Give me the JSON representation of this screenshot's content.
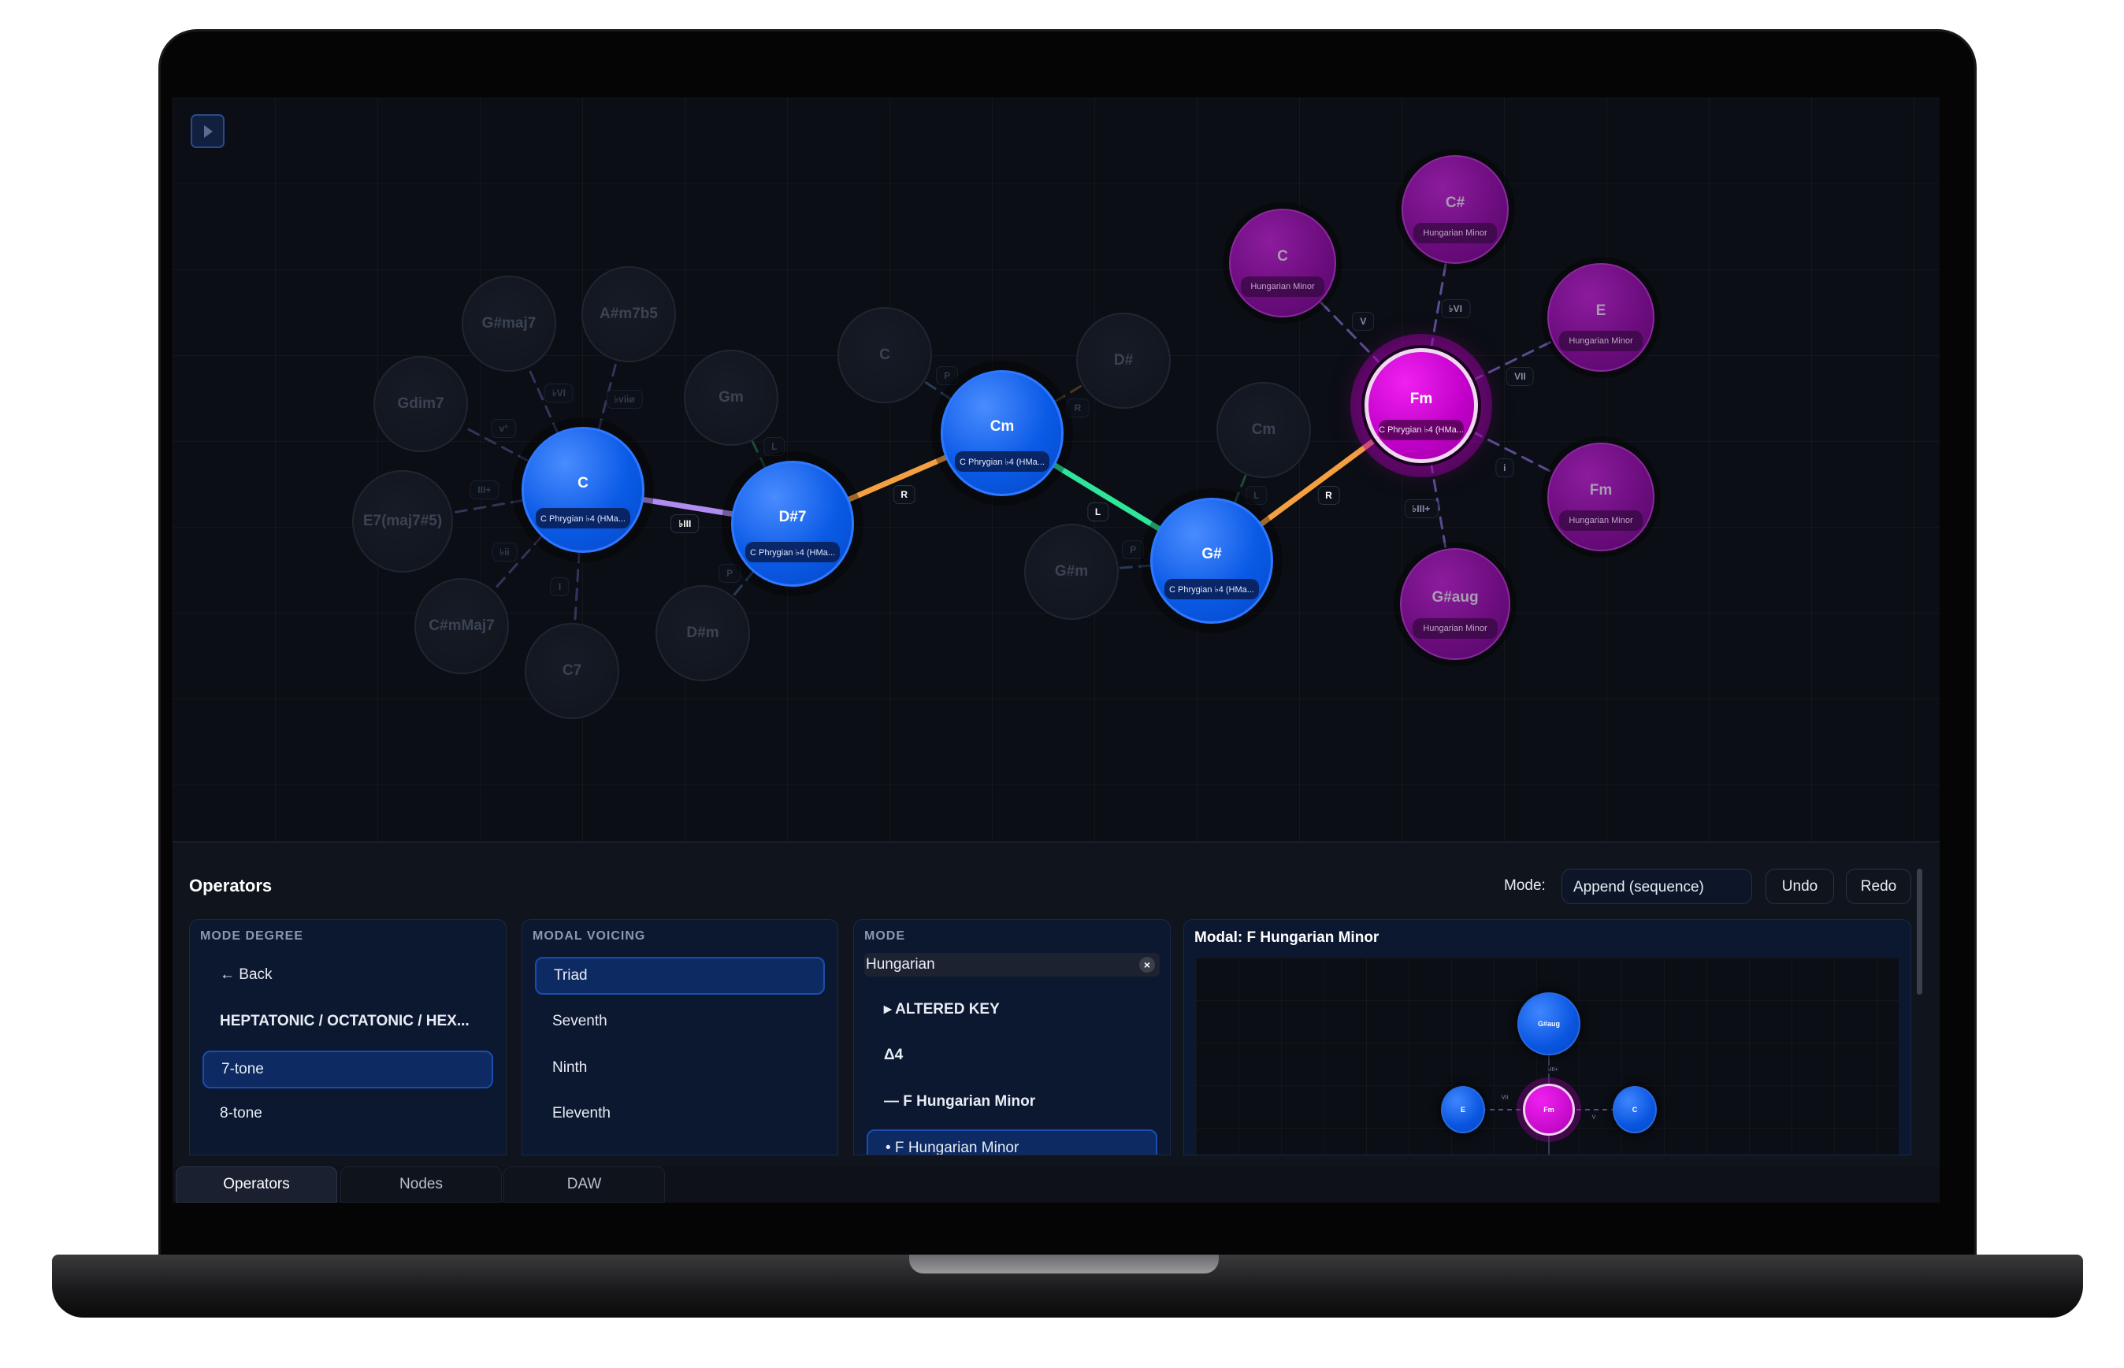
{
  "graph": {
    "nodes": [
      {
        "id": "c",
        "label": "C",
        "sub": "C Phrygian ♭4 (HMa...",
        "kind": "active"
      },
      {
        "id": "ds7",
        "label": "D#7",
        "sub": "C Phrygian ♭4 (HMa...",
        "kind": "active"
      },
      {
        "id": "cm",
        "label": "Cm",
        "sub": "C Phrygian ♭4 (HMa...",
        "kind": "active"
      },
      {
        "id": "gs",
        "label": "G#",
        "sub": "C Phrygian ♭4 (HMa...",
        "kind": "active"
      },
      {
        "id": "fm",
        "label": "Fm",
        "sub": "C Phrygian ♭4 (HMa...",
        "kind": "current"
      },
      {
        "id": "g_gsmaj7",
        "label": "G#maj7",
        "kind": "ghost"
      },
      {
        "id": "g_asm7b5",
        "label": "A#m7b5",
        "kind": "ghost"
      },
      {
        "id": "g_gdim7",
        "label": "Gdim7",
        "kind": "ghost"
      },
      {
        "id": "g_e7",
        "label": "E7(maj7#5)",
        "kind": "ghost"
      },
      {
        "id": "g_csmmaj7",
        "label": "C#mMaj7",
        "kind": "ghost"
      },
      {
        "id": "g_c7",
        "label": "C7",
        "kind": "ghost"
      },
      {
        "id": "g_gm",
        "label": "Gm",
        "kind": "ghost"
      },
      {
        "id": "g_dsm",
        "label": "D#m",
        "kind": "ghost"
      },
      {
        "id": "g_c",
        "label": "C",
        "kind": "ghost"
      },
      {
        "id": "g_ds",
        "label": "D#",
        "kind": "ghost"
      },
      {
        "id": "g_cm",
        "label": "Cm",
        "kind": "ghost"
      },
      {
        "id": "g_gsm",
        "label": "G#m",
        "kind": "ghost"
      },
      {
        "id": "m_c",
        "label": "C",
        "sub": "Hungarian Minor",
        "kind": "modal"
      },
      {
        "id": "m_cs",
        "label": "C#",
        "sub": "Hungarian Minor",
        "kind": "modal"
      },
      {
        "id": "m_e",
        "label": "E",
        "sub": "Hungarian Minor",
        "kind": "modal"
      },
      {
        "id": "m_fm",
        "label": "Fm",
        "sub": "Hungarian Minor",
        "kind": "modal"
      },
      {
        "id": "m_gsaug",
        "label": "G#aug",
        "sub": "Hungarian Minor",
        "kind": "modal"
      }
    ],
    "edges": [
      {
        "from": "c",
        "to": "ds7",
        "label": "♭III",
        "style": "sequence",
        "color": "#b08cf0"
      },
      {
        "from": "ds7",
        "to": "cm",
        "label": "R",
        "style": "sequence",
        "color": "#f5a040"
      },
      {
        "from": "cm",
        "to": "gs",
        "label": "L",
        "style": "sequence",
        "color": "#2ee59a"
      },
      {
        "from": "gs",
        "to": "fm",
        "label": "R",
        "style": "sequence",
        "color": "#f5a040"
      },
      {
        "from": "c",
        "to": "g_gsmaj7",
        "label": "♭VI",
        "style": "ghost",
        "color": "#34345a"
      },
      {
        "from": "c",
        "to": "g_asm7b5",
        "label": "♭viiø",
        "style": "ghost",
        "color": "#34345a"
      },
      {
        "from": "c",
        "to": "g_gdim7",
        "label": "v°",
        "style": "ghost",
        "color": "#34345a"
      },
      {
        "from": "c",
        "to": "g_e7",
        "label": "III+",
        "style": "ghost",
        "color": "#34345a"
      },
      {
        "from": "c",
        "to": "g_csmmaj7",
        "label": "♭ii",
        "style": "ghost",
        "color": "#34345a"
      },
      {
        "from": "c",
        "to": "g_c7",
        "label": "I",
        "style": "ghost",
        "color": "#34345a"
      },
      {
        "from": "ds7",
        "to": "g_gm",
        "label": "L",
        "style": "ghost",
        "color": "#1e4a38"
      },
      {
        "from": "ds7",
        "to": "g_dsm",
        "label": "P",
        "style": "ghost",
        "color": "#2a3a5a"
      },
      {
        "from": "cm",
        "to": "g_c",
        "label": "P",
        "style": "ghost",
        "color": "#2a3a5a"
      },
      {
        "from": "cm",
        "to": "g_ds",
        "label": "R",
        "style": "ghost",
        "color": "#4a3620"
      },
      {
        "from": "gs",
        "to": "g_cm",
        "label": "L",
        "style": "ghost",
        "color": "#1e4a38"
      },
      {
        "from": "gs",
        "to": "g_gsm",
        "label": "P",
        "style": "ghost",
        "color": "#2a3a5a"
      },
      {
        "from": "fm",
        "to": "m_c",
        "label": "V",
        "style": "modal",
        "color": "#5a4c90"
      },
      {
        "from": "fm",
        "to": "m_cs",
        "label": "♭VI",
        "style": "modal",
        "color": "#5a4c90"
      },
      {
        "from": "fm",
        "to": "m_e",
        "label": "VII",
        "style": "modal",
        "color": "#5a4c90"
      },
      {
        "from": "fm",
        "to": "m_fm",
        "label": "i",
        "style": "modal",
        "color": "#5a4c90"
      },
      {
        "from": "fm",
        "to": "m_gsaug",
        "label": "♭III+",
        "style": "modal",
        "color": "#5a4c90"
      }
    ]
  },
  "operators": {
    "title": "Operators",
    "mode_label": "Mode:",
    "mode_value": "Append (sequence)",
    "undo": "Undo",
    "redo": "Redo",
    "mode_degree": {
      "header": "MODE DEGREE",
      "items": [
        {
          "label": "← Back",
          "selected": false,
          "bold": false
        },
        {
          "label": "HEPTATONIC / OCTATONIC / HEX...",
          "selected": false,
          "bold": true
        },
        {
          "label": "7-tone",
          "selected": true,
          "bold": false
        },
        {
          "label": "8-tone",
          "selected": false,
          "bold": false
        }
      ]
    },
    "modal_voicing": {
      "header": "MODAL VOICING",
      "items": [
        {
          "label": "Triad",
          "selected": true
        },
        {
          "label": "Seventh",
          "selected": false
        },
        {
          "label": "Ninth",
          "selected": false
        },
        {
          "label": "Eleventh",
          "selected": false
        }
      ]
    },
    "mode": {
      "header": "MODE",
      "search_value": "Hungarian",
      "clear_icon": "×",
      "items": [
        {
          "label": "▸ ALTERED KEY",
          "selected": false
        },
        {
          "label": "Δ4",
          "selected": false
        },
        {
          "label": "— F Hungarian Minor",
          "selected": false
        },
        {
          "label": "• F Hungarian Minor",
          "selected": true
        }
      ]
    },
    "modal_preview": {
      "title": "Modal: F Hungarian Minor",
      "nodes": [
        {
          "label": "G#aug",
          "color": "blue"
        },
        {
          "label": "E",
          "color": "blue"
        },
        {
          "label": "Fm",
          "color": "magenta"
        },
        {
          "label": "C",
          "color": "blue"
        }
      ],
      "edge_labels": [
        "♭III+",
        "VII",
        "V"
      ]
    }
  },
  "tabs": [
    {
      "label": "Operators",
      "active": true
    },
    {
      "label": "Nodes",
      "active": false
    },
    {
      "label": "DAW",
      "active": false
    }
  ],
  "colors": {
    "accent": "#0a5ae6",
    "current": "#c000c8",
    "modal": "#6a0c7c",
    "background": "#0b0e14"
  }
}
